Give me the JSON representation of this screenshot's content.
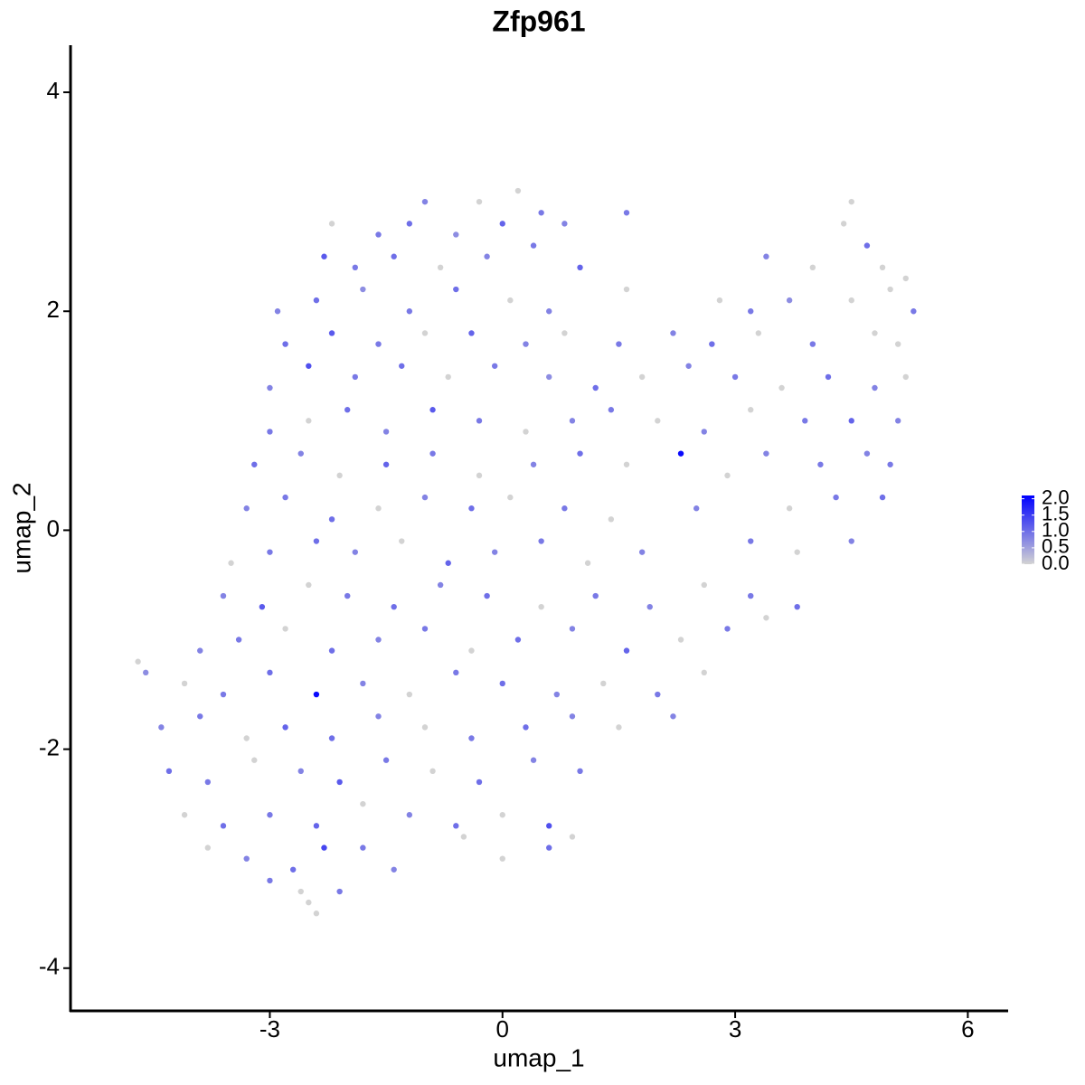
{
  "chart_data": {
    "type": "scatter",
    "title": "Zfp961",
    "x_label": "umap_1",
    "y_label": "umap_2",
    "xlim": [
      -5.57,
      6.52
    ],
    "ylim": [
      -4.39,
      4.43
    ],
    "xticks": [
      -3,
      0,
      3,
      6
    ],
    "yticks": [
      -4,
      -2,
      0,
      2,
      4
    ],
    "colors": [
      "#d3d3d3",
      "#0000ff"
    ],
    "color_lim": [
      0,
      2.1
    ],
    "color_ticks": [
      {
        "value": 2.0,
        "label": "2.0"
      },
      {
        "value": 1.5,
        "label": "1.5"
      },
      {
        "value": 1.0,
        "label": "1.0"
      },
      {
        "value": 0.5,
        "label": "0.5"
      },
      {
        "value": 0,
        "label": "0.0"
      }
    ],
    "x": [
      -1.0,
      -0.3,
      0.2,
      0.5,
      4.5,
      -2.2,
      -1.6,
      -1.2,
      -0.6,
      0.0,
      0.8,
      1.6,
      4.4,
      4.7,
      -2.3,
      -1.9,
      -1.4,
      -0.8,
      -0.2,
      0.4,
      1.0,
      3.4,
      4.0,
      4.9,
      5.2,
      -2.9,
      -2.4,
      -1.8,
      -1.2,
      -0.6,
      0.1,
      0.6,
      1.6,
      2.8,
      3.2,
      3.7,
      4.5,
      5.0,
      5.3,
      -2.8,
      -2.2,
      -1.6,
      -1.0,
      -0.4,
      0.3,
      0.8,
      1.5,
      2.2,
      2.7,
      3.3,
      4.0,
      4.8,
      5.1,
      -3.0,
      -2.5,
      -1.9,
      -1.3,
      -0.7,
      -0.1,
      0.6,
      1.2,
      1.8,
      2.4,
      3.0,
      3.6,
      4.2,
      4.8,
      5.2,
      -3.0,
      -2.5,
      -2.0,
      -1.5,
      -0.9,
      -0.3,
      0.3,
      0.9,
      1.4,
      2.0,
      2.6,
      3.2,
      3.9,
      4.5,
      5.1,
      -3.2,
      -2.6,
      -2.1,
      -1.5,
      -0.9,
      -0.3,
      0.4,
      1.0,
      1.6,
      2.3,
      2.9,
      3.4,
      4.1,
      4.7,
      5.0,
      -3.3,
      -2.8,
      -2.2,
      -1.6,
      -1.0,
      -0.4,
      0.1,
      0.8,
      1.4,
      2.5,
      3.7,
      4.3,
      4.9,
      -3.5,
      -3.0,
      -2.4,
      -1.9,
      -1.3,
      -0.7,
      -0.1,
      0.5,
      1.1,
      1.8,
      3.2,
      3.8,
      4.5,
      -3.6,
      -3.1,
      -2.5,
      -2.0,
      -1.4,
      -0.8,
      -0.2,
      0.5,
      1.2,
      1.9,
      2.6,
      3.2,
      3.8,
      -3.9,
      -3.4,
      -2.8,
      -2.2,
      -1.6,
      -1.0,
      -0.4,
      0.2,
      0.9,
      1.6,
      2.3,
      2.9,
      3.4,
      -4.7,
      -4.6,
      -4.1,
      -3.6,
      -3.0,
      -2.4,
      -1.8,
      -1.2,
      -0.6,
      0.0,
      0.7,
      1.3,
      2.0,
      2.6,
      -4.4,
      -3.9,
      -3.3,
      -2.8,
      -2.2,
      -1.6,
      -1.0,
      -0.4,
      0.3,
      0.9,
      1.5,
      2.2,
      -4.3,
      -3.8,
      -3.2,
      -2.6,
      -2.1,
      -1.5,
      -0.9,
      -0.3,
      0.4,
      1.0,
      -4.1,
      -3.6,
      -3.0,
      -2.4,
      -1.8,
      -1.2,
      -0.6,
      0.0,
      0.6,
      0.9,
      -3.8,
      -3.3,
      -2.7,
      -2.3,
      -1.8,
      -1.4,
      -0.5,
      0.0,
      0.6,
      -3.0,
      -2.6,
      -2.5,
      -2.1,
      -2.4
    ],
    "y": [
      3.0,
      3.0,
      3.1,
      2.9,
      3.0,
      2.8,
      2.7,
      2.8,
      2.7,
      2.8,
      2.8,
      2.9,
      2.8,
      2.6,
      2.5,
      2.4,
      2.5,
      2.4,
      2.5,
      2.6,
      2.4,
      2.5,
      2.4,
      2.4,
      2.3,
      2.0,
      2.1,
      2.2,
      2.0,
      2.2,
      2.1,
      2.0,
      2.2,
      2.1,
      2.0,
      2.1,
      2.1,
      2.2,
      2.0,
      1.7,
      1.8,
      1.7,
      1.8,
      1.8,
      1.7,
      1.8,
      1.7,
      1.8,
      1.7,
      1.8,
      1.7,
      1.8,
      1.7,
      1.3,
      1.5,
      1.4,
      1.5,
      1.4,
      1.5,
      1.4,
      1.3,
      1.4,
      1.5,
      1.4,
      1.3,
      1.4,
      1.3,
      1.4,
      0.9,
      1.0,
      1.1,
      0.9,
      1.1,
      1.0,
      0.9,
      1.0,
      1.1,
      1.0,
      0.9,
      1.1,
      1.0,
      1.0,
      1.0,
      0.6,
      0.7,
      0.5,
      0.6,
      0.7,
      0.5,
      0.6,
      0.7,
      0.6,
      0.7,
      0.5,
      0.7,
      0.6,
      0.7,
      0.6,
      0.2,
      0.3,
      0.1,
      0.2,
      0.3,
      0.2,
      0.3,
      0.2,
      0.1,
      0.2,
      0.2,
      0.3,
      0.3,
      -0.3,
      -0.2,
      -0.1,
      -0.2,
      -0.1,
      -0.3,
      -0.2,
      -0.1,
      -0.3,
      -0.2,
      -0.1,
      -0.2,
      -0.1,
      -0.6,
      -0.7,
      -0.5,
      -0.6,
      -0.7,
      -0.5,
      -0.6,
      -0.7,
      -0.6,
      -0.7,
      -0.5,
      -0.6,
      -0.7,
      -1.1,
      -1.0,
      -0.9,
      -1.1,
      -1.0,
      -0.9,
      -1.1,
      -1.0,
      -0.9,
      -1.1,
      -1.0,
      -0.9,
      -0.8,
      -1.2,
      -1.3,
      -1.4,
      -1.5,
      -1.3,
      -1.5,
      -1.4,
      -1.5,
      -1.3,
      -1.4,
      -1.5,
      -1.4,
      -1.5,
      -1.3,
      -1.8,
      -1.7,
      -1.9,
      -1.8,
      -1.9,
      -1.7,
      -1.8,
      -1.9,
      -1.8,
      -1.7,
      -1.8,
      -1.7,
      -2.2,
      -2.3,
      -2.1,
      -2.2,
      -2.3,
      -2.1,
      -2.2,
      -2.3,
      -2.1,
      -2.2,
      -2.6,
      -2.7,
      -2.6,
      -2.7,
      -2.5,
      -2.6,
      -2.7,
      -2.6,
      -2.7,
      -2.8,
      -2.9,
      -3.0,
      -3.1,
      -2.9,
      -2.9,
      -3.1,
      -2.8,
      -3.0,
      -2.9,
      -3.2,
      -3.3,
      -3.4,
      -3.3,
      -3.5
    ],
    "values": [
      0.8,
      0,
      0,
      0.9,
      0,
      0,
      0.9,
      1.0,
      0.7,
      1.1,
      0.8,
      0.9,
      0,
      1.0,
      1.2,
      0.9,
      1.0,
      0,
      0.8,
      0.9,
      1.1,
      0.8,
      0,
      0,
      0,
      0.8,
      1.0,
      0.7,
      0.9,
      1.0,
      0,
      0.8,
      0,
      0,
      0.9,
      0.7,
      0,
      0,
      0.9,
      1.0,
      1.2,
      0.9,
      0,
      1.1,
      0.8,
      0,
      0.9,
      0.8,
      1.0,
      0,
      0.9,
      0,
      0,
      0.8,
      1.3,
      0.9,
      1.0,
      0,
      0.9,
      0.7,
      1.0,
      0,
      0.8,
      0.9,
      0,
      1.0,
      0.8,
      0,
      0.9,
      0,
      1.0,
      0.8,
      1.2,
      0.9,
      0,
      0.8,
      0.9,
      0,
      0.8,
      0,
      0.9,
      1.1,
      0.8,
      1.0,
      0.8,
      0,
      1.1,
      0.9,
      0,
      0.8,
      1.0,
      0,
      2.0,
      0,
      0.8,
      0.9,
      0.8,
      0.9,
      0.8,
      0.9,
      1.0,
      0,
      0.8,
      1.0,
      0,
      0.9,
      0,
      0.8,
      0,
      0.9,
      1.0,
      0,
      0.9,
      1.0,
      0.8,
      0,
      1.1,
      0.8,
      0.9,
      0,
      0.8,
      0.9,
      0,
      0.8,
      0.8,
      1.2,
      0,
      0.9,
      1.0,
      0.8,
      1.0,
      0,
      0.9,
      0.8,
      0,
      0.9,
      1.0,
      0.8,
      0.9,
      0,
      1.0,
      0.8,
      0.9,
      0,
      1.0,
      0.8,
      1.1,
      0,
      0.9,
      0,
      0,
      0.7,
      0,
      0.9,
      1.0,
      2.0,
      0.8,
      0,
      0.9,
      1.0,
      0.8,
      0,
      0.9,
      0,
      0.8,
      0.9,
      0,
      1.1,
      1.0,
      0.8,
      0,
      0.9,
      1.0,
      0.8,
      0,
      0.8,
      1.0,
      0.9,
      0,
      0.8,
      1.2,
      0.9,
      0,
      1.0,
      0.8,
      0.9,
      0,
      1.0,
      0.9,
      1.1,
      0,
      0.8,
      1.0,
      0,
      1.3,
      0,
      0,
      0.8,
      1.0,
      1.4,
      0.9,
      0.8,
      0,
      0,
      1.0,
      0.9,
      0,
      0,
      0.9,
      0
    ]
  }
}
